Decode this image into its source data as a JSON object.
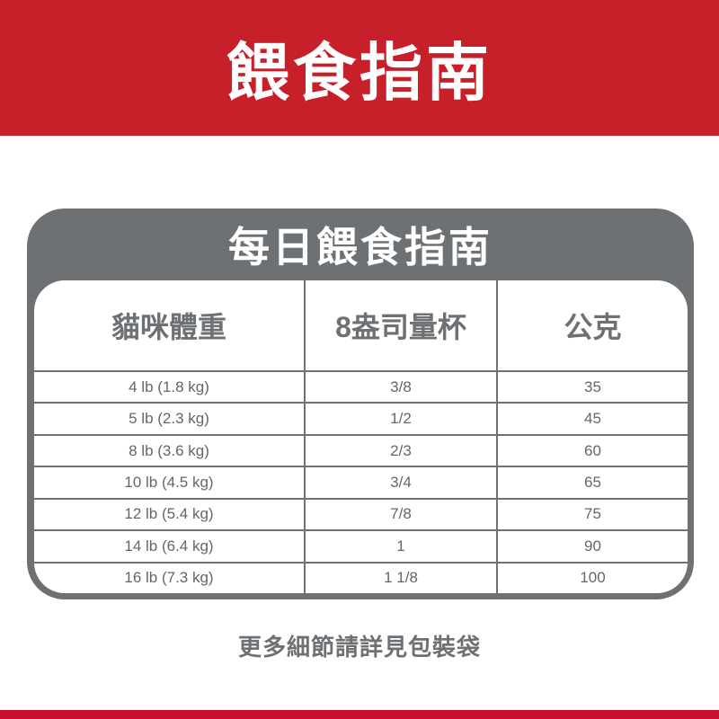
{
  "header": {
    "title": "餵食指南"
  },
  "card": {
    "title": "每日餵食指南",
    "columns": [
      "貓咪體重",
      "8盎司量杯",
      "公克"
    ],
    "rows": [
      [
        "4 lb (1.8 kg)",
        "3/8",
        "35"
      ],
      [
        "5 lb (2.3 kg)",
        "1/2",
        "45"
      ],
      [
        "8 lb (3.6 kg)",
        "2/3",
        "60"
      ],
      [
        "10 lb (4.5 kg)",
        "3/4",
        "65"
      ],
      [
        "12 lb (5.4 kg)",
        "7/8",
        "75"
      ],
      [
        "14 lb (6.4 kg)",
        "1",
        "90"
      ],
      [
        "16 lb (7.3 kg)",
        "1 1/8",
        "100"
      ]
    ]
  },
  "footer": {
    "note": "更多細節請詳見包裝袋"
  },
  "colors": {
    "brand_red": "#c8202a",
    "gray": "#6d7174"
  }
}
